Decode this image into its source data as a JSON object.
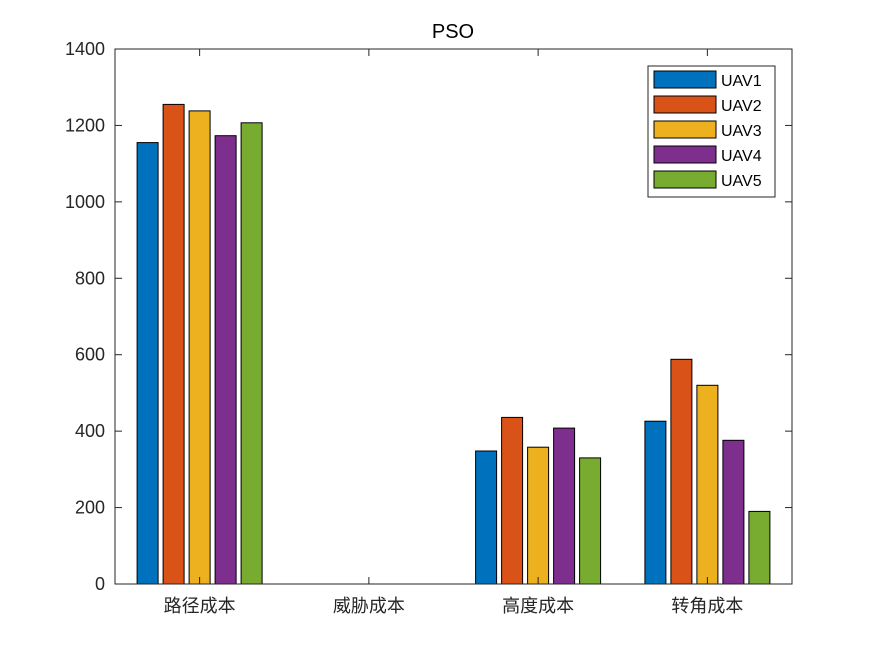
{
  "chart_data": {
    "type": "bar",
    "title": "PSO",
    "xlabel": "",
    "ylabel": "",
    "ylim": [
      0,
      1400
    ],
    "yticks": [
      0,
      200,
      400,
      600,
      800,
      1000,
      1200,
      1400
    ],
    "categories": [
      "路径成本",
      "威胁成本",
      "高度成本",
      "转角成本"
    ],
    "series": [
      {
        "name": "UAV1",
        "color": "#0072BD",
        "values": [
          1155,
          0,
          348,
          426
        ]
      },
      {
        "name": "UAV2",
        "color": "#D95319",
        "values": [
          1255,
          0,
          436,
          588
        ]
      },
      {
        "name": "UAV3",
        "color": "#EDB120",
        "values": [
          1238,
          0,
          358,
          520
        ]
      },
      {
        "name": "UAV4",
        "color": "#7E2F8E",
        "values": [
          1173,
          0,
          408,
          376
        ]
      },
      {
        "name": "UAV5",
        "color": "#77AC30",
        "values": [
          1207,
          0,
          330,
          190
        ]
      }
    ],
    "grid": false,
    "legend_position": "top-right"
  }
}
